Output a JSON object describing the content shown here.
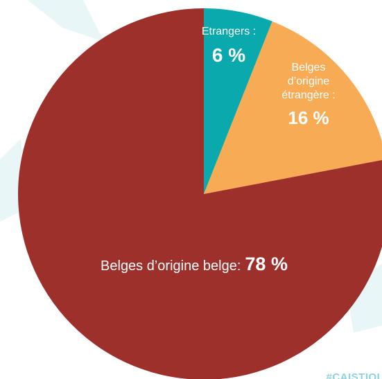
{
  "chart_data": {
    "type": "pie",
    "categories": [
      "Etrangers :",
      "Belges d’origine étrangère :",
      "Belges d’origine belge:"
    ],
    "values": [
      6,
      16,
      78
    ],
    "value_labels": [
      "6 %",
      "16 %",
      "78 %"
    ],
    "colors": [
      "#0aa9ae",
      "#f7ab55",
      "#9e302b"
    ],
    "footer": "#CAISTIQU"
  }
}
